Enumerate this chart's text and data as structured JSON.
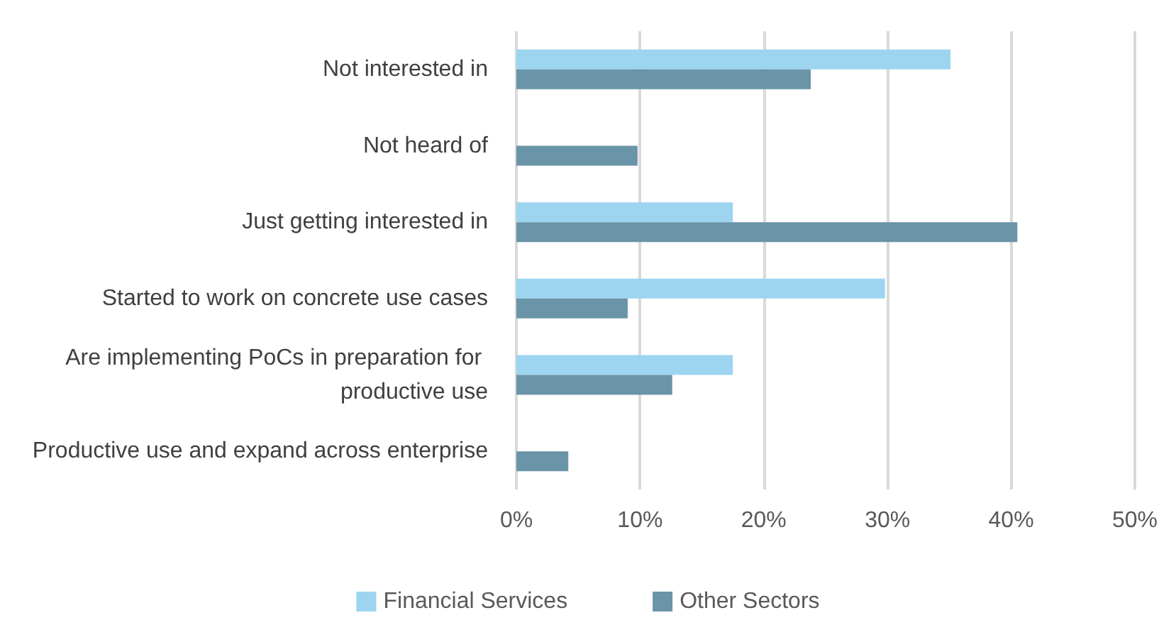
{
  "chart_data": {
    "type": "bar",
    "orientation": "horizontal",
    "categories": [
      "Not interested in",
      "Not heard of",
      "Just getting interested in",
      "Started to work on concrete use cases",
      "Are implementing PoCs in preparation for productive use",
      "Productive use and expand across enterprise"
    ],
    "series": [
      {
        "name": "Financial Services",
        "color": "#9dd5f0",
        "values": [
          35.1,
          0,
          17.5,
          29.8,
          17.5,
          0
        ]
      },
      {
        "name": "Other Sectors",
        "color": "#6a94a8",
        "values": [
          23.8,
          9.8,
          40.5,
          9.0,
          12.6,
          4.2
        ]
      }
    ],
    "xlim": [
      0,
      50
    ],
    "xticks": [
      {
        "value": 0,
        "label": "0%"
      },
      {
        "value": 10,
        "label": "10%"
      },
      {
        "value": 20,
        "label": "20%"
      },
      {
        "value": 30,
        "label": "30%"
      },
      {
        "value": 40,
        "label": "40%"
      },
      {
        "value": 50,
        "label": "50%"
      }
    ],
    "grid": "x",
    "legend": "bottom"
  }
}
